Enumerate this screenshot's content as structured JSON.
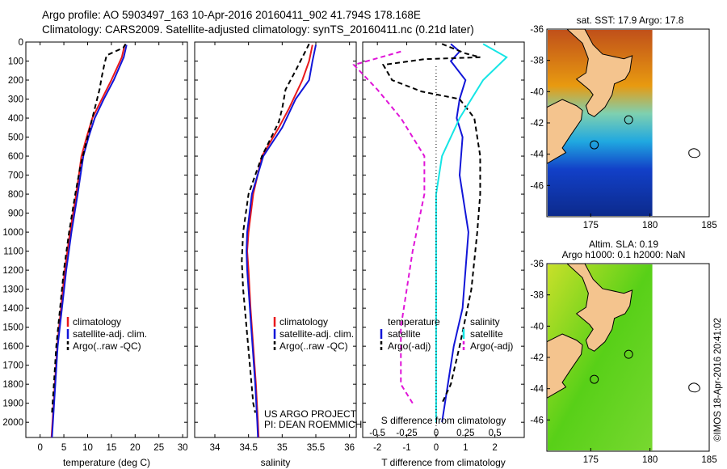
{
  "header": {
    "line1": "Argo profile: AO 5903497_163 10-Apr-2016 20160411_902 41.794S 178.168E",
    "line2": "Climatology: CARS2009. Satellite-adjusted climatology: synTS_20160411.nc (0.21d later)"
  },
  "colors": {
    "climatology": "#e8191c",
    "satellite": "#1216d8",
    "argo": "#000000",
    "salinity_satellite": "#15e5e5",
    "salinity_argo": "#e015d8"
  },
  "chart_data": [
    {
      "type": "line",
      "xlabel": "temperature (deg C)",
      "ylabel": "",
      "xlim": [
        -3,
        31
      ],
      "ylim": [
        2080,
        0
      ],
      "xticks": [
        "0",
        "5",
        "10",
        "15",
        "20",
        "25",
        "30"
      ],
      "yticks": [
        "0",
        "100",
        "200",
        "300",
        "400",
        "500",
        "600",
        "700",
        "800",
        "900",
        "1000",
        "1100",
        "1200",
        "1300",
        "1400",
        "1500",
        "1600",
        "1700",
        "1800",
        "1900",
        "2000"
      ],
      "legend": [
        "climatology",
        "satellite-adj. clim.",
        "Argo(..raw -QC)"
      ],
      "series": [
        {
          "name": "climatology",
          "values": [
            [
              17.8,
              15
            ],
            [
              17.2,
              80
            ],
            [
              15,
              200
            ],
            [
              13,
              300
            ],
            [
              11,
              400
            ],
            [
              9.8,
              500
            ],
            [
              8.7,
              600
            ],
            [
              7.6,
              800
            ],
            [
              6.3,
              1000
            ],
            [
              5.2,
              1200
            ],
            [
              4.4,
              1400
            ],
            [
              3.6,
              1600
            ],
            [
              3.1,
              1800
            ],
            [
              2.6,
              2000
            ],
            [
              2.4,
              2080
            ]
          ]
        },
        {
          "name": "satellite-adj. clim.",
          "values": [
            [
              18.2,
              15
            ],
            [
              17.6,
              80
            ],
            [
              15.5,
              200
            ],
            [
              13.4,
              300
            ],
            [
              11.5,
              400
            ],
            [
              10.2,
              500
            ],
            [
              9.1,
              600
            ],
            [
              7.9,
              800
            ],
            [
              6.6,
              1000
            ],
            [
              5.5,
              1200
            ],
            [
              4.6,
              1400
            ],
            [
              3.7,
              1600
            ],
            [
              3.2,
              1800
            ],
            [
              2.7,
              2000
            ],
            [
              2.5,
              2080
            ]
          ]
        },
        {
          "name": "Argo(..raw -QC)",
          "values": [
            [
              18,
              10
            ],
            [
              17.5,
              30
            ],
            [
              14,
              70
            ],
            [
              13.5,
              120
            ],
            [
              13,
              180
            ],
            [
              12.5,
              250
            ],
            [
              11.5,
              350
            ],
            [
              10.5,
              450
            ],
            [
              9.5,
              550
            ],
            [
              8.5,
              650
            ],
            [
              7.4,
              800
            ],
            [
              6.1,
              1000
            ],
            [
              5,
              1200
            ],
            [
              4.2,
              1400
            ],
            [
              3.4,
              1600
            ],
            [
              2.9,
              1800
            ],
            [
              2.5,
              1950
            ]
          ]
        }
      ]
    },
    {
      "type": "line",
      "xlabel": "salinity",
      "ylabel": "",
      "xlim": [
        33.7,
        36.1
      ],
      "ylim": [
        2080,
        0
      ],
      "xticks": [
        "34",
        "34.5",
        "35",
        "35.5",
        "36"
      ],
      "legend": [
        "climatology",
        "satellite-adj. clim.",
        "Argo(..raw -QC)"
      ],
      "annotations": [
        "US ARGO PROJECT",
        "PI: DEAN ROEMMICH"
      ],
      "series": [
        {
          "name": "climatology",
          "values": [
            [
              35.45,
              15
            ],
            [
              35.4,
              100
            ],
            [
              35.3,
              200
            ],
            [
              35.1,
              350
            ],
            [
              34.95,
              450
            ],
            [
              34.7,
              600
            ],
            [
              34.57,
              800
            ],
            [
              34.5,
              1000
            ],
            [
              34.48,
              1100
            ],
            [
              34.5,
              1200
            ],
            [
              34.53,
              1400
            ],
            [
              34.57,
              1600
            ],
            [
              34.61,
              1800
            ],
            [
              34.64,
              2000
            ],
            [
              34.65,
              2080
            ]
          ]
        },
        {
          "name": "satellite-adj. clim.",
          "values": [
            [
              35.5,
              15
            ],
            [
              35.45,
              100
            ],
            [
              35.4,
              200
            ],
            [
              35.2,
              300
            ],
            [
              35,
              450
            ],
            [
              34.72,
              600
            ],
            [
              34.55,
              800
            ],
            [
              34.48,
              1000
            ],
            [
              34.47,
              1100
            ],
            [
              34.48,
              1200
            ],
            [
              34.52,
              1400
            ],
            [
              34.56,
              1600
            ],
            [
              34.6,
              1800
            ],
            [
              34.63,
              2000
            ],
            [
              34.64,
              2080
            ]
          ]
        },
        {
          "name": "Argo(..raw -QC)",
          "values": [
            [
              35.4,
              10
            ],
            [
              35.3,
              80
            ],
            [
              35.2,
              150
            ],
            [
              35.05,
              250
            ],
            [
              35,
              350
            ],
            [
              34.95,
              420
            ],
            [
              34.7,
              600
            ],
            [
              34.5,
              800
            ],
            [
              34.42,
              1000
            ],
            [
              34.4,
              1150
            ],
            [
              34.42,
              1300
            ],
            [
              34.47,
              1500
            ],
            [
              34.52,
              1700
            ],
            [
              34.57,
              1900
            ],
            [
              34.6,
              1950
            ]
          ]
        }
      ]
    },
    {
      "type": "line",
      "xlabel": "T difference from climatology",
      "x2label": "S difference from climatology",
      "xlim": [
        -2.5,
        3
      ],
      "ylim": [
        2080,
        0
      ],
      "xticks": [
        "-2",
        "-1",
        "0",
        "1",
        "2"
      ],
      "x2ticks": [
        "-0.5",
        "-0.25",
        "0",
        "0.25",
        "0.5"
      ],
      "legend_titles": [
        "temperature",
        "salinity"
      ],
      "legend": [
        "satellite",
        "Argo(-adj)",
        "satellite",
        "Argo(-adj)"
      ],
      "series": [
        {
          "name": "satellite",
          "values": [
            [
              0.5,
              10
            ],
            [
              0.8,
              50
            ],
            [
              0.5,
              100
            ],
            [
              1,
              200
            ],
            [
              0.8,
              300
            ],
            [
              0.7,
              400
            ],
            [
              0.9,
              500
            ],
            [
              0.8,
              700
            ],
            [
              1,
              900
            ],
            [
              1.1,
              1000
            ],
            [
              1,
              1200
            ],
            [
              0.9,
              1400
            ],
            [
              0.6,
              1600
            ],
            [
              0.4,
              1800
            ],
            [
              0.2,
              2000
            ]
          ]
        },
        {
          "name": "Argo(-adj)",
          "values": [
            [
              0.2,
              10
            ],
            [
              1,
              60
            ],
            [
              1.5,
              80
            ],
            [
              -0.4,
              90
            ],
            [
              -1.8,
              120
            ],
            [
              -1.5,
              200
            ],
            [
              -0.5,
              260
            ],
            [
              0.8,
              300
            ],
            [
              1.3,
              400
            ],
            [
              1.5,
              600
            ],
            [
              1.5,
              800
            ],
            [
              1.4,
              1000
            ],
            [
              1.2,
              1300
            ],
            [
              0.8,
              1600
            ],
            [
              0.5,
              1800
            ],
            [
              0.2,
              1900
            ]
          ]
        },
        {
          "name": "satellite",
          "values": [
            [
              0.4,
              10
            ],
            [
              0.6,
              80
            ],
            [
              0.4,
              200
            ],
            [
              0.2,
              400
            ],
            [
              0.05,
              600
            ],
            [
              0,
              800
            ],
            [
              0,
              1000
            ],
            [
              0,
              1400
            ],
            [
              0,
              2000
            ]
          ]
        },
        {
          "name": "Argo(-adj)",
          "values": [
            [
              -0.3,
              50
            ],
            [
              -0.7,
              120
            ],
            [
              -0.5,
              250
            ],
            [
              -0.3,
              400
            ],
            [
              -0.1,
              600
            ],
            [
              -0.1,
              800
            ],
            [
              -0.2,
              1100
            ],
            [
              -0.3,
              1500
            ],
            [
              -0.3,
              1800
            ],
            [
              -0.2,
              1900
            ]
          ]
        }
      ]
    }
  ],
  "maps": [
    {
      "title": "sat. SST: 17.9 Argo: 17.8",
      "title2": "",
      "xticks": [
        "175",
        "180",
        "185"
      ],
      "yticks": [
        "-36",
        "-38",
        "-40",
        "-42",
        "-44",
        "-46"
      ]
    },
    {
      "title": "Altim. SLA: 0.19",
      "title2": "Argo h1000: 0.1 h2000: NaN",
      "xticks": [
        "175",
        "180",
        "185"
      ],
      "yticks": [
        "-36",
        "-38",
        "-40",
        "-42",
        "-44",
        "-46"
      ]
    }
  ],
  "watermark": "©IMOS 18-Apr-2016 20:41:02"
}
